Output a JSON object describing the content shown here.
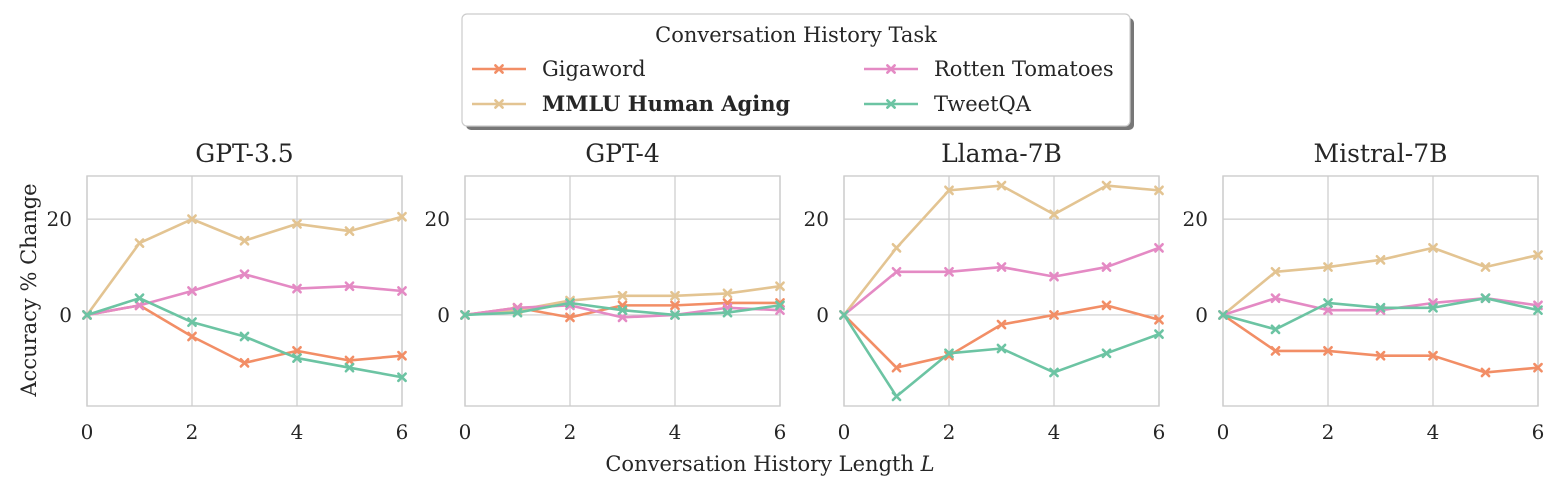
{
  "legend": {
    "title": "Conversation History Task",
    "entries": [
      {
        "name": "Gigaword",
        "color": "#f28e66",
        "bold": false
      },
      {
        "name": "Rotten Tomatoes",
        "color": "#e48ac4",
        "bold": false
      },
      {
        "name": "MMLU Human Aging",
        "color": "#e3c492",
        "bold": true
      },
      {
        "name": "TweetQA",
        "color": "#6cc4a3",
        "bold": false
      }
    ]
  },
  "xlabel_text": "Conversation History Length ",
  "xlabel_var": "L",
  "ylabel": "Accuracy % Change",
  "chart_data": [
    {
      "type": "line",
      "title": "GPT-3.5",
      "x": [
        0,
        1,
        2,
        3,
        4,
        5,
        6
      ],
      "xlim": [
        0,
        6
      ],
      "ylim": [
        -19,
        29
      ],
      "xticks": [
        "0",
        "2",
        "4",
        "6"
      ],
      "yticks": [
        "0",
        "20"
      ],
      "grid": true,
      "series": [
        {
          "name": "Gigaword",
          "values": [
            0,
            2,
            -4.5,
            -10,
            -7.5,
            -9.5,
            -8.5
          ]
        },
        {
          "name": "MMLU Human Aging",
          "values": [
            0,
            15,
            20,
            15.5,
            19,
            17.5,
            20.5
          ]
        },
        {
          "name": "Rotten Tomatoes",
          "values": [
            0,
            2,
            5,
            8.5,
            5.5,
            6,
            5
          ]
        },
        {
          "name": "TweetQA",
          "values": [
            0,
            3.5,
            -1.5,
            -4.5,
            -9,
            -11,
            -13
          ]
        }
      ]
    },
    {
      "type": "line",
      "title": "GPT-4",
      "x": [
        0,
        1,
        2,
        3,
        4,
        5,
        6
      ],
      "xlim": [
        0,
        6
      ],
      "ylim": [
        -19,
        29
      ],
      "xticks": [
        "0",
        "2",
        "4",
        "6"
      ],
      "yticks": [
        "0",
        "20"
      ],
      "grid": true,
      "series": [
        {
          "name": "Gigaword",
          "values": [
            0,
            1.5,
            -0.5,
            2,
            2,
            2.5,
            2.5
          ]
        },
        {
          "name": "MMLU Human Aging",
          "values": [
            0,
            1,
            3,
            4,
            4,
            4.5,
            6
          ]
        },
        {
          "name": "Rotten Tomatoes",
          "values": [
            0,
            1.5,
            2,
            -0.5,
            0,
            1.5,
            1
          ]
        },
        {
          "name": "TweetQA",
          "values": [
            0,
            0.5,
            2.5,
            1,
            0,
            0.5,
            2
          ]
        }
      ]
    },
    {
      "type": "line",
      "title": "Llama-7B",
      "x": [
        0,
        1,
        2,
        3,
        4,
        5,
        6
      ],
      "xlim": [
        0,
        6
      ],
      "ylim": [
        -19,
        29
      ],
      "xticks": [
        "0",
        "2",
        "4",
        "6"
      ],
      "yticks": [
        "0",
        "20"
      ],
      "grid": true,
      "series": [
        {
          "name": "Gigaword",
          "values": [
            0,
            -11,
            -8.5,
            -2,
            0,
            2,
            -1
          ]
        },
        {
          "name": "MMLU Human Aging",
          "values": [
            0,
            14,
            26,
            27,
            21,
            27,
            26
          ]
        },
        {
          "name": "Rotten Tomatoes",
          "values": [
            0,
            9,
            9,
            10,
            8,
            10,
            14
          ]
        },
        {
          "name": "TweetQA",
          "values": [
            0,
            -17,
            -8,
            -7,
            -12,
            -8,
            -4
          ]
        }
      ]
    },
    {
      "type": "line",
      "title": "Mistral-7B",
      "x": [
        0,
        1,
        2,
        3,
        4,
        5,
        6
      ],
      "xlim": [
        0,
        6
      ],
      "ylim": [
        -19,
        29
      ],
      "xticks": [
        "0",
        "2",
        "4",
        "6"
      ],
      "yticks": [
        "0",
        "20"
      ],
      "grid": true,
      "series": [
        {
          "name": "Gigaword",
          "values": [
            0,
            -7.5,
            -7.5,
            -8.5,
            -8.5,
            -12,
            -11
          ]
        },
        {
          "name": "MMLU Human Aging",
          "values": [
            0,
            9,
            10,
            11.5,
            14,
            10,
            12.5
          ]
        },
        {
          "name": "Rotten Tomatoes",
          "values": [
            0,
            3.5,
            1,
            1,
            2.5,
            3.5,
            2
          ]
        },
        {
          "name": "TweetQA",
          "values": [
            0,
            -3,
            2.5,
            1.5,
            1.5,
            3.5,
            1
          ]
        }
      ]
    }
  ]
}
